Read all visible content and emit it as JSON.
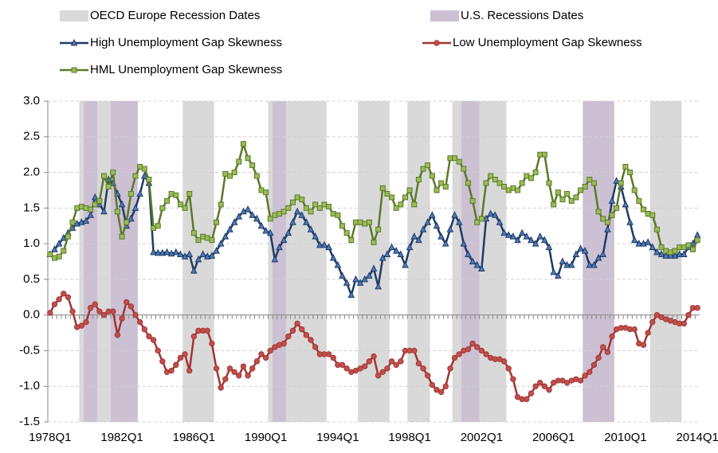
{
  "chart_data": {
    "type": "line",
    "categories": [
      "1978Q1",
      null,
      null,
      null,
      null,
      null,
      null,
      null,
      null,
      null,
      null,
      null,
      null,
      null,
      null,
      null,
      "1982Q1",
      null,
      null,
      null,
      null,
      null,
      null,
      null,
      null,
      null,
      null,
      null,
      null,
      null,
      null,
      null,
      "1986Q1",
      null,
      null,
      null,
      null,
      null,
      null,
      null,
      null,
      null,
      null,
      null,
      null,
      null,
      null,
      null,
      "1990Q1",
      null,
      null,
      null,
      null,
      null,
      null,
      null,
      null,
      null,
      null,
      null,
      null,
      null,
      null,
      null,
      "1994Q1",
      null,
      null,
      null,
      null,
      null,
      null,
      null,
      null,
      null,
      null,
      null,
      null,
      null,
      null,
      null,
      "1998Q1",
      null,
      null,
      null,
      null,
      null,
      null,
      null,
      null,
      null,
      null,
      null,
      null,
      null,
      null,
      null,
      "2002Q1",
      null,
      null,
      null,
      null,
      null,
      null,
      null,
      null,
      null,
      null,
      null,
      null,
      null,
      null,
      null,
      "2006Q1",
      null,
      null,
      null,
      null,
      null,
      null,
      null,
      null,
      null,
      null,
      null,
      null,
      null,
      null,
      null,
      "2010Q1",
      null,
      null,
      null,
      null,
      null,
      null,
      null,
      null,
      null,
      null,
      null,
      null,
      null,
      null,
      null,
      "2014Q1"
    ],
    "shading": [
      {
        "name": "OECD Europe Recession Dates",
        "color": "#d9d9d9",
        "ranges": [
          [
            6.5,
            13.5
          ],
          [
            29.5,
            36.5
          ],
          [
            48.5,
            61.5
          ],
          [
            68.5,
            75.5
          ],
          [
            79.5,
            84.5
          ],
          [
            89.5,
            101.5
          ],
          [
            133.5,
            140.5
          ]
        ]
      },
      {
        "name": "U.S. Recessions Dates",
        "color": "#ccc0d3",
        "ranges": [
          [
            7.5,
            10.5
          ],
          [
            13.5,
            19.5
          ],
          [
            49.5,
            52.5
          ],
          [
            91.5,
            95.5
          ],
          [
            118.5,
            125.5
          ]
        ]
      }
    ],
    "series": [
      {
        "name": "High Unemployment Gap Skewness",
        "color": "#1f3b66",
        "marker": "triangle",
        "values": [
          0.85,
          0.92,
          1.0,
          1.08,
          1.15,
          1.22,
          1.28,
          1.3,
          1.32,
          1.4,
          1.65,
          1.55,
          1.45,
          1.9,
          1.85,
          1.7,
          1.55,
          1.25,
          1.35,
          1.5,
          1.7,
          1.95,
          1.85,
          0.88,
          0.87,
          0.87,
          0.88,
          0.86,
          0.88,
          0.85,
          0.82,
          0.85,
          0.62,
          0.78,
          0.85,
          0.82,
          0.83,
          0.9,
          1.0,
          1.1,
          1.2,
          1.3,
          1.38,
          1.45,
          1.48,
          1.4,
          1.35,
          1.25,
          1.18,
          1.15,
          0.78,
          0.95,
          1.05,
          1.15,
          1.3,
          1.45,
          1.4,
          1.3,
          1.2,
          1.1,
          0.98,
          0.98,
          0.95,
          0.8,
          0.7,
          0.55,
          0.45,
          0.28,
          0.5,
          0.45,
          0.5,
          0.55,
          0.65,
          0.4,
          0.8,
          0.85,
          0.95,
          0.9,
          0.85,
          0.7,
          0.95,
          1.1,
          1.05,
          1.2,
          1.3,
          1.4,
          1.25,
          1.1,
          1.0,
          1.2,
          1.4,
          1.3,
          1.0,
          0.85,
          0.75,
          0.7,
          0.65,
          1.35,
          1.42,
          1.4,
          1.3,
          1.15,
          1.12,
          1.1,
          1.05,
          1.15,
          1.1,
          1.05,
          1.0,
          1.1,
          1.05,
          0.95,
          0.6,
          0.55,
          0.75,
          0.7,
          0.7,
          0.85,
          0.93,
          0.9,
          0.7,
          0.7,
          0.8,
          0.85,
          1.2,
          1.6,
          1.88,
          1.8,
          1.55,
          1.3,
          1.05,
          1.0,
          1.0,
          1.02,
          0.95,
          0.88,
          0.85,
          0.83,
          0.83,
          0.83,
          0.85,
          0.85,
          0.95,
          1.0,
          1.12
        ]
      },
      {
        "name": "Low Unemployment Gap Skewness",
        "color": "#a33532",
        "marker": "circle",
        "values": [
          0.03,
          0.15,
          0.22,
          0.3,
          0.25,
          0.05,
          -0.17,
          -0.15,
          -0.1,
          0.1,
          0.15,
          0.05,
          0.0,
          0.05,
          0.05,
          -0.28,
          -0.05,
          0.18,
          0.12,
          0.0,
          -0.1,
          -0.2,
          -0.3,
          -0.35,
          -0.5,
          -0.65,
          -0.8,
          -0.78,
          -0.7,
          -0.6,
          -0.55,
          -0.78,
          -0.3,
          -0.22,
          -0.22,
          -0.22,
          -0.4,
          -0.75,
          -1.02,
          -0.9,
          -0.75,
          -0.8,
          -0.85,
          -0.72,
          -0.85,
          -0.75,
          -0.65,
          -0.55,
          -0.6,
          -0.5,
          -0.45,
          -0.42,
          -0.4,
          -0.3,
          -0.22,
          -0.12,
          -0.2,
          -0.28,
          -0.35,
          -0.45,
          -0.55,
          -0.55,
          -0.55,
          -0.6,
          -0.7,
          -0.7,
          -0.75,
          -0.8,
          -0.78,
          -0.75,
          -0.72,
          -0.65,
          -0.58,
          -0.85,
          -0.8,
          -0.75,
          -0.65,
          -0.7,
          -0.65,
          -0.5,
          -0.5,
          -0.5,
          -0.68,
          -0.75,
          -0.85,
          -0.98,
          -1.05,
          -1.08,
          -1.0,
          -0.75,
          -0.6,
          -0.55,
          -0.5,
          -0.48,
          -0.4,
          -0.45,
          -0.5,
          -0.55,
          -0.6,
          -0.62,
          -0.62,
          -0.65,
          -0.75,
          -0.9,
          -1.15,
          -1.18,
          -1.18,
          -1.1,
          -1.0,
          -0.95,
          -1.0,
          -1.05,
          -0.95,
          -0.92,
          -0.92,
          -0.95,
          -0.92,
          -0.9,
          -0.92,
          -0.85,
          -0.8,
          -0.7,
          -0.6,
          -0.45,
          -0.52,
          -0.3,
          -0.2,
          -0.18,
          -0.18,
          -0.2,
          -0.2,
          -0.4,
          -0.42,
          -0.25,
          -0.1,
          0.0,
          -0.03,
          -0.06,
          -0.08,
          -0.1,
          -0.12,
          -0.12,
          0.0,
          0.1,
          0.1
        ]
      },
      {
        "name": "HML Unemployment Gap Skewness",
        "color": "#5a7a26",
        "marker": "square",
        "values": [
          0.85,
          0.8,
          0.82,
          0.9,
          1.1,
          1.3,
          1.5,
          1.52,
          1.5,
          1.48,
          1.55,
          1.6,
          1.95,
          1.8,
          2.0,
          1.45,
          1.1,
          1.3,
          1.7,
          1.95,
          2.08,
          2.05,
          1.9,
          1.22,
          1.25,
          1.5,
          1.6,
          1.7,
          1.68,
          1.55,
          1.5,
          1.7,
          1.15,
          1.05,
          1.1,
          1.08,
          1.05,
          1.3,
          1.55,
          1.98,
          1.95,
          2.0,
          2.15,
          2.4,
          2.2,
          2.1,
          1.95,
          1.75,
          1.72,
          1.35,
          1.4,
          1.42,
          1.45,
          1.5,
          1.58,
          1.65,
          1.62,
          1.5,
          1.45,
          1.55,
          1.5,
          1.55,
          1.52,
          1.42,
          1.4,
          1.25,
          1.15,
          1.05,
          1.3,
          1.3,
          1.28,
          1.3,
          1.02,
          1.2,
          1.78,
          1.7,
          1.65,
          1.5,
          1.55,
          1.65,
          1.75,
          1.55,
          1.9,
          2.05,
          2.1,
          1.95,
          1.75,
          1.85,
          1.8,
          2.2,
          2.2,
          2.15,
          2.05,
          1.85,
          1.6,
          1.3,
          1.35,
          1.85,
          1.95,
          1.9,
          1.85,
          1.8,
          1.75,
          1.78,
          1.75,
          1.85,
          1.95,
          1.92,
          2.0,
          2.25,
          2.25,
          1.85,
          1.55,
          1.72,
          1.62,
          1.7,
          1.6,
          1.65,
          1.75,
          1.8,
          1.9,
          1.85,
          1.45,
          1.35,
          1.3,
          1.4,
          1.5,
          1.85,
          2.08,
          2.0,
          1.75,
          1.6,
          1.48,
          1.42,
          1.4,
          1.2,
          0.95,
          0.9,
          0.88,
          0.9,
          0.95,
          0.95,
          0.98,
          0.92,
          1.05
        ]
      }
    ],
    "ylim": [
      -1.5,
      3.0
    ],
    "yticks": [
      -1.5,
      {
        "value": -1.0,
        "label": "-1.0"
      },
      -0.5,
      {
        "value": 0.0,
        "label": "0.0"
      },
      0.5,
      {
        "value": 1.0,
        "label": "1.0"
      },
      1.5,
      {
        "value": 2.0,
        "label": "2.0"
      },
      2.5,
      {
        "value": 3.0,
        "label": "3.0"
      }
    ],
    "grid": true
  }
}
